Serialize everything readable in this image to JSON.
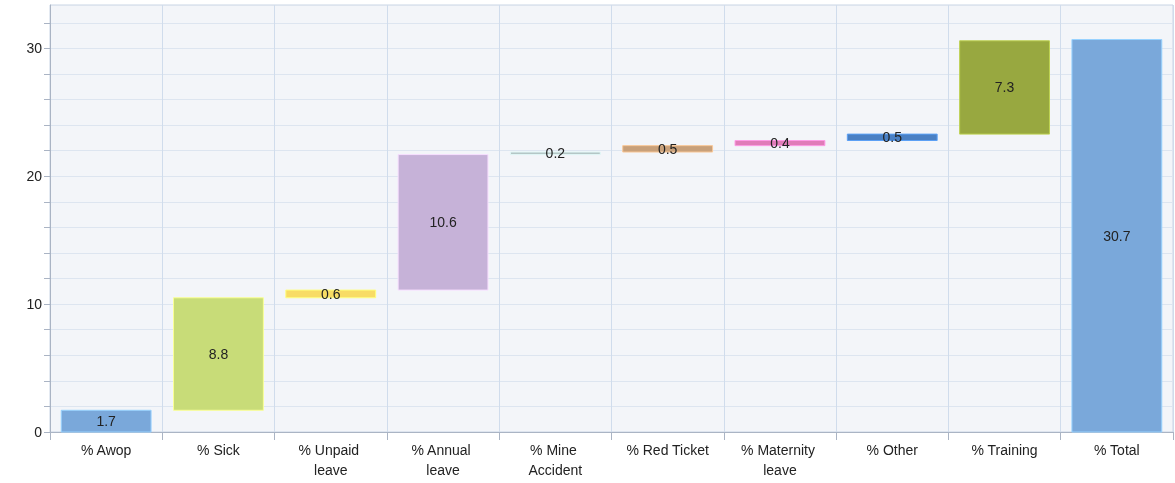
{
  "chart_data": {
    "type": "bar",
    "categories": [
      "% Awop",
      "% Sick",
      "% Unpaid leave",
      "% Annual leave",
      "% Mine Accident",
      "% Red Ticket",
      "% Maternity leave",
      "% Other",
      "% Training",
      "% Total"
    ],
    "values": [
      1.7,
      8.8,
      0.6,
      10.6,
      0.2,
      0.5,
      0.4,
      0.5,
      7.3,
      30.7
    ],
    "base": [
      0,
      1.7,
      10.5,
      11.1,
      21.7,
      21.9,
      22.4,
      22.8,
      23.3,
      0
    ],
    "colors": [
      "#7aa8da",
      "#c8dc78",
      "#f8dc64",
      "#c6b2d8",
      "#b4c6c6",
      "#c8a07a",
      "#e07cb8",
      "#4a80c4",
      "#98a840",
      "#7aa8da"
    ],
    "ylim": [
      0,
      33.4
    ],
    "yticks": [
      0,
      {
        "value": 2,
        "label": null
      },
      {
        "value": 4,
        "label": null
      },
      {
        "value": 6,
        "label": null
      },
      {
        "value": 8,
        "label": null
      },
      10,
      {
        "value": 12,
        "label": null
      },
      {
        "value": 14,
        "label": null
      },
      {
        "value": 16,
        "label": null
      },
      {
        "value": 18,
        "label": null
      },
      20,
      {
        "value": 22,
        "label": null
      },
      {
        "value": 24,
        "label": null
      },
      {
        "value": 26,
        "label": null
      },
      {
        "value": 28,
        "label": null
      },
      30,
      {
        "value": 32,
        "label": null
      }
    ],
    "grid": true,
    "data_labels": true
  }
}
